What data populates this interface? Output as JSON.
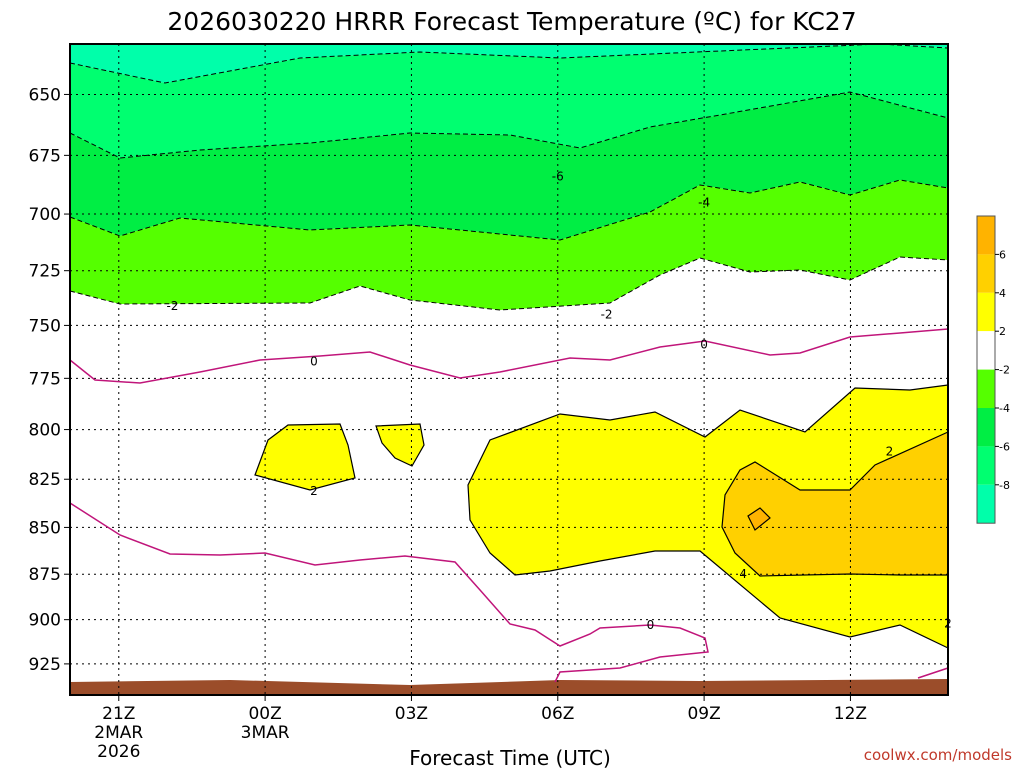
{
  "chart_data": {
    "type": "contour",
    "title": "2026030220 HRRR Forecast Temperature (ºC) for KC27",
    "xlabel": "Forecast Time (UTC)",
    "ylabel": "",
    "credit": "coolwx.com/models",
    "x_ticks": [
      {
        "hour": -1,
        "label": "21Z",
        "sub1": "2MAR",
        "sub2": "2026"
      },
      {
        "hour": 2,
        "label": "00Z",
        "sub1": "3MAR",
        "sub2": ""
      },
      {
        "hour": 5,
        "label": "03Z",
        "sub1": "",
        "sub2": ""
      },
      {
        "hour": 8,
        "label": "06Z",
        "sub1": "",
        "sub2": ""
      },
      {
        "hour": 11,
        "label": "09Z",
        "sub1": "",
        "sub2": ""
      },
      {
        "hour": 14,
        "label": "12Z",
        "sub1": "",
        "sub2": ""
      }
    ],
    "x_range": [
      -2,
      16
    ],
    "y_ticks": [
      650,
      675,
      700,
      725,
      750,
      775,
      800,
      825,
      850,
      875,
      900,
      925
    ],
    "y_range_hPa": [
      630,
      943
    ],
    "y_scale": "log-pressure",
    "colorbar": {
      "labels": [
        "6",
        "4",
        "2",
        "-2",
        "-4",
        "-6",
        "-8"
      ],
      "bins": [
        {
          "color": "#ffb300"
        },
        {
          "color": "#ffd000"
        },
        {
          "color": "#ffff00"
        },
        {
          "color": "#ffffff"
        },
        {
          "color": "#55ff00"
        },
        {
          "color": "#00ee44"
        },
        {
          "color": "#00ff70"
        },
        {
          "color": "#00ffaa"
        }
      ]
    },
    "contour_labels": [
      {
        "text": "-6",
        "hour": 8,
        "p": 684
      },
      {
        "text": "-4",
        "hour": 11,
        "p": 695
      },
      {
        "text": "-2",
        "hour": 0.1,
        "p": 741
      },
      {
        "text": "-2",
        "hour": 9,
        "p": 745
      },
      {
        "text": "0",
        "hour": 3,
        "p": 767
      },
      {
        "text": "0",
        "hour": 11,
        "p": 759
      },
      {
        "text": "0",
        "hour": 9.9,
        "p": 903
      },
      {
        "text": "2",
        "hour": 3,
        "p": 831
      },
      {
        "text": "2",
        "hour": 14.8,
        "p": 811
      },
      {
        "text": "2",
        "hour": 16,
        "p": 902
      },
      {
        "text": "4",
        "hour": 11.8,
        "p": 875
      }
    ],
    "terrain_color": "#9b4d2a",
    "series": []
  }
}
